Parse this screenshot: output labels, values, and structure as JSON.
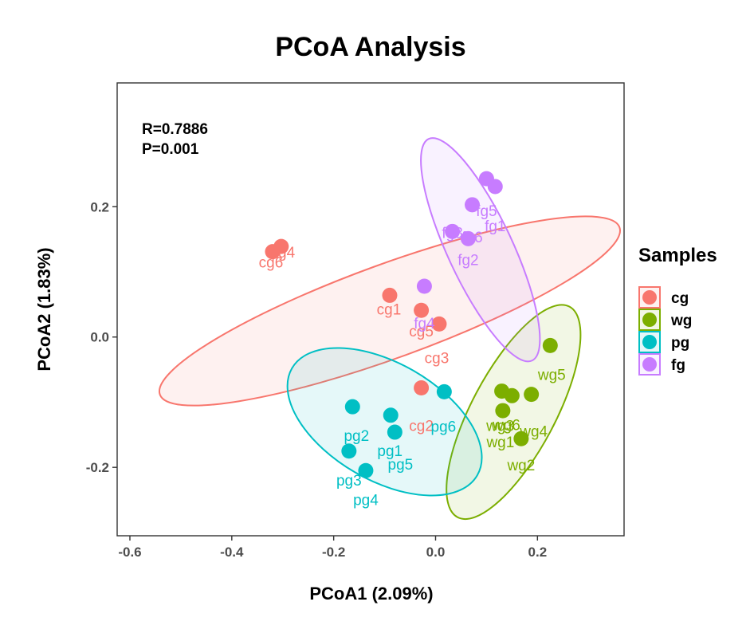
{
  "chart_data": {
    "type": "scatter",
    "title": "PCoA Analysis",
    "xlabel": "PCoA1 (2.09%)",
    "ylabel": "PCoA2 (1.83%)",
    "xlim": [
      -0.625,
      0.37
    ],
    "ylim": [
      -0.305,
      0.39
    ],
    "xticks": [
      -0.6,
      -0.4,
      -0.2,
      0.0,
      0.2
    ],
    "xtick_labels": [
      "-0.6",
      "-0.4",
      "-0.2",
      "0.0",
      "0.2"
    ],
    "yticks": [
      -0.2,
      0.0,
      0.2
    ],
    "ytick_labels": [
      "-0.2",
      "0.0",
      "0.2"
    ],
    "grid": false,
    "annotations": [
      "R=0.7886",
      "P=0.001"
    ],
    "legend": {
      "title": "Samples",
      "position": "right"
    },
    "series": [
      {
        "name": "cg",
        "color": "#F8766D",
        "points": [
          {
            "label": "cg6",
            "x": -0.32,
            "y": 0.131
          },
          {
            "label": "cg4",
            "x": -0.303,
            "y": 0.139
          },
          {
            "label": "cg1",
            "x": -0.09,
            "y": 0.064
          },
          {
            "label": "cg5",
            "x": -0.028,
            "y": 0.041
          },
          {
            "label": "cg3",
            "x": 0.007,
            "y": 0.02
          },
          {
            "label": "cg2",
            "x": -0.028,
            "y": -0.078
          }
        ],
        "label_offsets": [
          [
            -0.0,
            0.021
          ],
          [
            0.002,
            0.014
          ],
          [
            0.0,
            -0.019
          ],
          [
            0.0,
            -0.021
          ],
          [
            0.0,
            -0.019
          ],
          [
            0.0,
            -0.021
          ]
        ],
        "ellipse": {
          "cx": -0.09,
          "cy": 0.04,
          "rx": 0.48,
          "ry": 0.072,
          "angle_deg": 20
        }
      },
      {
        "name": "wg",
        "color": "#7CAE00",
        "points": [
          {
            "label": "wg5",
            "x": 0.225,
            "y": -0.013
          },
          {
            "label": "wg3",
            "x": 0.13,
            "y": -0.083
          },
          {
            "label": "wg6",
            "x": 0.15,
            "y": -0.09
          },
          {
            "label": "wg4",
            "x": 0.188,
            "y": -0.088
          },
          {
            "label": "wg1",
            "x": 0.132,
            "y": -0.113
          },
          {
            "label": "wg2",
            "x": 0.168,
            "y": -0.156
          }
        ],
        "label_offsets": [
          [
            0.0,
            0.0
          ],
          [
            0.0,
            0.0
          ],
          [
            0.0,
            0.0
          ],
          [
            0.0,
            0.0
          ],
          [
            0.0,
            0.0
          ],
          [
            0.0,
            0.0
          ]
        ],
        "ellipse": {
          "cx": 0.153,
          "cy": -0.115,
          "rx": 0.082,
          "ry": 0.183,
          "angle_deg": -28
        }
      },
      {
        "name": "pg",
        "color": "#00BFC4",
        "points": [
          {
            "label": "pg6",
            "x": 0.017,
            "y": -0.084
          },
          {
            "label": "pg2",
            "x": -0.163,
            "y": -0.107
          },
          {
            "label": "pg1",
            "x": -0.088,
            "y": -0.12
          },
          {
            "label": "pg5",
            "x": -0.08,
            "y": -0.146
          },
          {
            "label": "pg3",
            "x": -0.17,
            "y": -0.175
          },
          {
            "label": "pg4",
            "x": -0.137,
            "y": -0.205
          }
        ],
        "label_offsets": [
          [
            0.0,
            0.0
          ],
          [
            0.0,
            0.0
          ],
          [
            0.0,
            0.0
          ],
          [
            0.0,
            0.0
          ],
          [
            0.0,
            0.0
          ],
          [
            0.0,
            0.0
          ]
        ],
        "ellipse": {
          "cx": -0.1,
          "cy": -0.13,
          "rx": 0.21,
          "ry": 0.09,
          "angle_deg": -30
        }
      },
      {
        "name": "fg",
        "color": "#C77CFF",
        "points": [
          {
            "label": "fg5",
            "x": 0.1,
            "y": 0.243
          },
          {
            "label": "fg1",
            "x": 0.117,
            "y": 0.231
          },
          {
            "label": "fg6",
            "x": 0.072,
            "y": 0.203
          },
          {
            "label": "fg3",
            "x": 0.033,
            "y": 0.162
          },
          {
            "label": "fg2",
            "x": 0.064,
            "y": 0.151
          },
          {
            "label": "fg4",
            "x": -0.022,
            "y": 0.078
          }
        ],
        "label_offsets": [
          [
            0.0,
            0.0
          ],
          [
            0.0,
            0.0
          ],
          [
            0.0,
            0.0
          ],
          [
            0.0,
            0.0
          ],
          [
            0.0,
            0.0
          ],
          [
            0.0,
            0.0
          ]
        ],
        "ellipse": {
          "cx": 0.088,
          "cy": 0.134,
          "rx": 0.24,
          "ry": 0.05,
          "angle_deg": -65
        }
      }
    ]
  }
}
